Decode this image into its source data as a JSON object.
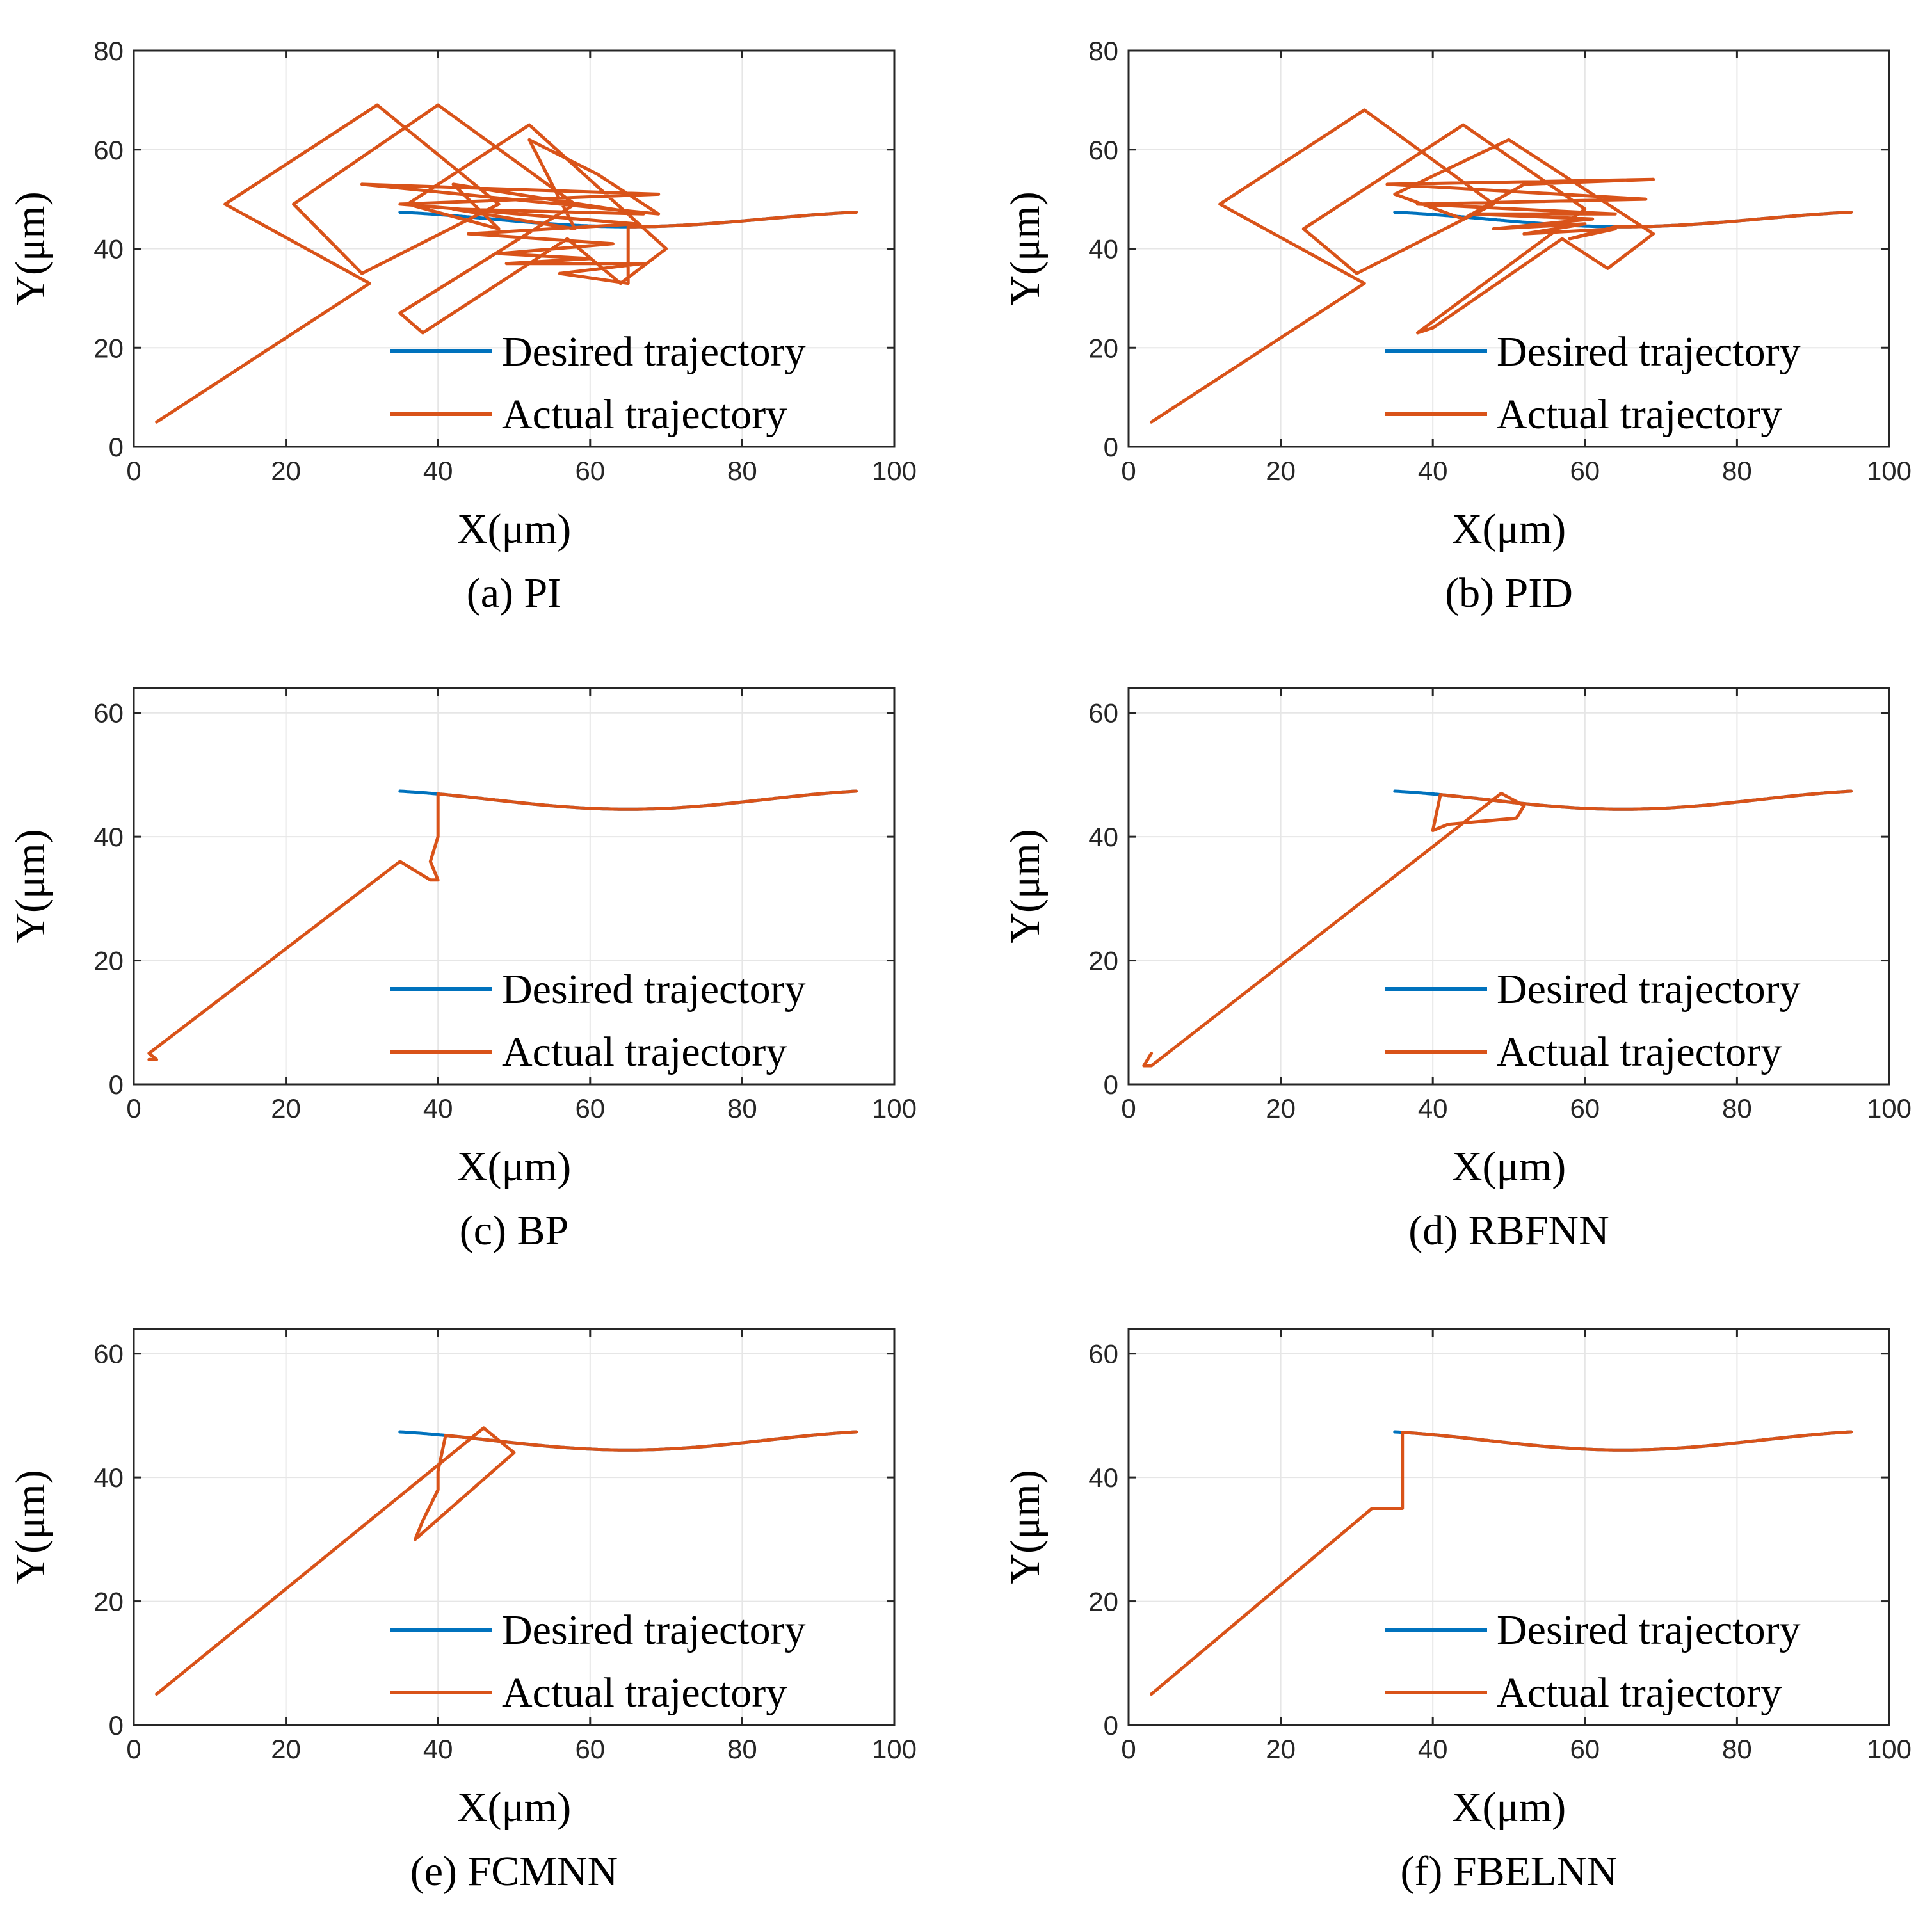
{
  "figure": {
    "title": ""
  },
  "chart_data": [
    {
      "type": "line",
      "caption": "(a) PI",
      "xlabel": "X(μm)",
      "ylabel": "Y(μm)",
      "xlim": [
        0,
        100
      ],
      "ylim": [
        0,
        80
      ],
      "grid": true,
      "xticks": [
        "0",
        "20",
        "40",
        "60",
        "80",
        "100"
      ],
      "yticks": [
        "0",
        "20",
        "40",
        "60",
        "80"
      ],
      "legend": {
        "position": "bottom-right"
      },
      "series": [
        {
          "name": "Desired trajectory",
          "color": "#0072BD",
          "curve": "sinusoid",
          "x_range": [
            35,
            95
          ]
        },
        {
          "name": "Actual trajectory",
          "color": "#D95319",
          "curve": "mixed",
          "points": [
            [
              3,
              5
            ],
            [
              31,
              33
            ],
            [
              12,
              49
            ],
            [
              32,
              69
            ],
            [
              48,
              49
            ],
            [
              30,
              35
            ],
            [
              21,
              49
            ],
            [
              40,
              69
            ],
            [
              58,
              49
            ],
            [
              35,
              27
            ],
            [
              38,
              23
            ],
            [
              57,
              42
            ],
            [
              64,
              33
            ],
            [
              70,
              40
            ],
            [
              52,
              65
            ],
            [
              36,
              49
            ],
            [
              48,
              44
            ],
            [
              42,
              53
            ],
            [
              67,
              47
            ],
            [
              42,
              48
            ],
            [
              58,
              44
            ],
            [
              52,
              62
            ],
            [
              61,
              55
            ],
            [
              69,
              47
            ],
            [
              30,
              53
            ],
            [
              69,
              51
            ],
            [
              35,
              49
            ],
            [
              66,
              45
            ],
            [
              44,
              43
            ],
            [
              63,
              41
            ],
            [
              48,
              39
            ],
            [
              60,
              38
            ],
            [
              49,
              37
            ],
            [
              67,
              37
            ],
            [
              56,
              35
            ],
            [
              65,
              33
            ]
          ],
          "join_desired_at_x": 65,
          "x_end": 95
        }
      ]
    },
    {
      "type": "line",
      "caption": "(b) PID",
      "xlabel": "X(μm)",
      "ylabel": "Y(μm)",
      "xlim": [
        0,
        100
      ],
      "ylim": [
        0,
        80
      ],
      "grid": true,
      "xticks": [
        "0",
        "20",
        "40",
        "60",
        "80",
        "100"
      ],
      "yticks": [
        "0",
        "20",
        "40",
        "60",
        "80"
      ],
      "legend": {
        "position": "bottom-right"
      },
      "series": [
        {
          "name": "Desired trajectory",
          "color": "#0072BD",
          "curve": "sinusoid",
          "x_range": [
            35,
            95
          ]
        },
        {
          "name": "Actual trajectory",
          "color": "#D95319",
          "curve": "mixed",
          "points": [
            [
              3,
              5
            ],
            [
              31,
              33
            ],
            [
              12,
              49
            ],
            [
              31,
              68
            ],
            [
              48,
              49
            ],
            [
              30,
              35
            ],
            [
              23,
              44
            ],
            [
              44,
              65
            ],
            [
              60,
              48
            ],
            [
              38,
              23
            ],
            [
              40,
              24
            ],
            [
              57,
              42
            ],
            [
              63,
              36
            ],
            [
              69,
              43
            ],
            [
              50,
              62
            ],
            [
              35,
              51
            ],
            [
              44,
              46
            ],
            [
              52,
              53
            ],
            [
              69,
              54
            ],
            [
              34,
              53
            ],
            [
              68,
              50
            ],
            [
              38,
              49
            ],
            [
              64,
              47
            ],
            [
              45,
              47
            ],
            [
              61,
              46
            ],
            [
              48,
              44
            ],
            [
              60,
              45
            ],
            [
              52,
              43
            ],
            [
              64,
              44
            ],
            [
              58,
              42
            ]
          ],
          "join_desired_at_x": 64,
          "x_end": 95
        }
      ]
    },
    {
      "type": "line",
      "caption": "(c) BP",
      "xlabel": "X(μm)",
      "ylabel": "Y(μm)",
      "xlim": [
        0,
        100
      ],
      "ylim": [
        0,
        64
      ],
      "grid": true,
      "xticks": [
        "0",
        "20",
        "40",
        "60",
        "80",
        "100"
      ],
      "yticks": [
        "0",
        "20",
        "40",
        "60"
      ],
      "legend": {
        "position": "bottom-right"
      },
      "series": [
        {
          "name": "Desired trajectory",
          "color": "#0072BD",
          "curve": "sinusoid",
          "x_range": [
            35,
            95
          ]
        },
        {
          "name": "Actual trajectory",
          "color": "#D95319",
          "curve": "mixed",
          "points": [
            [
              2,
              4
            ],
            [
              3,
              4
            ],
            [
              2,
              5
            ],
            [
              35,
              36
            ],
            [
              39,
              33
            ],
            [
              40,
              33
            ],
            [
              39,
              36
            ],
            [
              40,
              40
            ]
          ],
          "join_desired_at_x": 40,
          "x_end": 95
        }
      ]
    },
    {
      "type": "line",
      "caption": "(d) RBFNN",
      "xlabel": "X(μm)",
      "ylabel": "Y(μm)",
      "xlim": [
        0,
        100
      ],
      "ylim": [
        0,
        64
      ],
      "grid": true,
      "xticks": [
        "0",
        "20",
        "40",
        "60",
        "80",
        "100"
      ],
      "yticks": [
        "0",
        "20",
        "40",
        "60"
      ],
      "legend": {
        "position": "bottom-right"
      },
      "series": [
        {
          "name": "Desired trajectory",
          "color": "#0072BD",
          "curve": "sinusoid",
          "x_range": [
            35,
            95
          ]
        },
        {
          "name": "Actual trajectory",
          "color": "#D95319",
          "curve": "mixed",
          "points": [
            [
              3,
              5
            ],
            [
              2,
              3
            ],
            [
              3,
              3
            ],
            [
              49,
              47
            ],
            [
              52,
              45
            ],
            [
              51,
              43
            ],
            [
              42,
              42
            ],
            [
              40,
              41
            ]
          ],
          "join_desired_at_x": 41,
          "x_end": 95
        }
      ]
    },
    {
      "type": "line",
      "caption": "(e) FCMNN",
      "xlabel": "X(μm)",
      "ylabel": "Y(μm)",
      "xlim": [
        0,
        100
      ],
      "ylim": [
        0,
        64
      ],
      "grid": true,
      "xticks": [
        "0",
        "20",
        "40",
        "60",
        "80",
        "100"
      ],
      "yticks": [
        "0",
        "20",
        "40",
        "60"
      ],
      "legend": {
        "position": "bottom-right"
      },
      "series": [
        {
          "name": "Desired trajectory",
          "color": "#0072BD",
          "curve": "sinusoid",
          "x_range": [
            35,
            95
          ]
        },
        {
          "name": "Actual trajectory",
          "color": "#D95319",
          "curve": "mixed",
          "points": [
            [
              3,
              5
            ],
            [
              46,
              48
            ],
            [
              50,
              44
            ],
            [
              37,
              30
            ],
            [
              38,
              33
            ],
            [
              40,
              38
            ],
            [
              40,
              41
            ]
          ],
          "join_desired_at_x": 41,
          "x_end": 95
        }
      ]
    },
    {
      "type": "line",
      "caption": "(f) FBELNN",
      "xlabel": "X(μm)",
      "ylabel": "Y(μm)",
      "xlim": [
        0,
        100
      ],
      "ylim": [
        0,
        64
      ],
      "grid": true,
      "xticks": [
        "0",
        "20",
        "40",
        "60",
        "80",
        "100"
      ],
      "yticks": [
        "0",
        "20",
        "40",
        "60"
      ],
      "legend": {
        "position": "bottom-right"
      },
      "series": [
        {
          "name": "Desired trajectory",
          "color": "#0072BD",
          "curve": "sinusoid",
          "x_range": [
            35,
            95
          ]
        },
        {
          "name": "Actual trajectory",
          "color": "#D95319",
          "curve": "mixed",
          "points": [
            [
              3,
              5
            ],
            [
              32,
              35
            ],
            [
              36,
              35
            ]
          ],
          "join_desired_at_x": 36,
          "x_end": 95
        }
      ]
    }
  ]
}
